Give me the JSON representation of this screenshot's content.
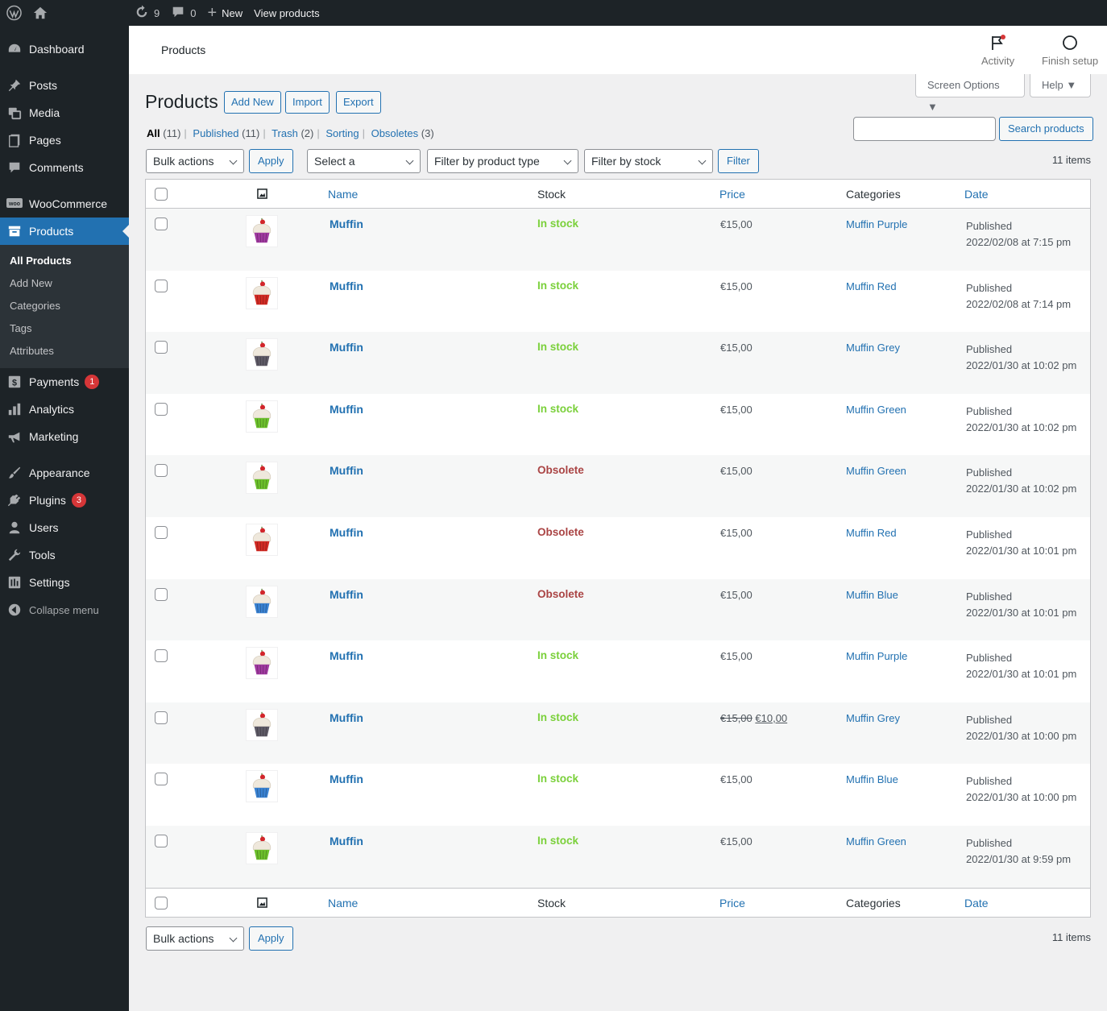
{
  "adminbar": {
    "updates_count": "9",
    "comments_count": "0",
    "new_label": "New",
    "view_label": "View products"
  },
  "sidebar": {
    "items": [
      {
        "label": "Dashboard",
        "icon": "dashboard-icon"
      },
      {
        "label": "Posts",
        "icon": "pin-icon"
      },
      {
        "label": "Media",
        "icon": "media-icon"
      },
      {
        "label": "Pages",
        "icon": "pages-icon"
      },
      {
        "label": "Comments",
        "icon": "comments-icon"
      },
      {
        "label": "WooCommerce",
        "icon": "woo-icon"
      },
      {
        "label": "Products",
        "icon": "archive-icon"
      },
      {
        "label": "Payments",
        "icon": "payments-icon",
        "badge": "1"
      },
      {
        "label": "Analytics",
        "icon": "chart-bar-icon"
      },
      {
        "label": "Marketing",
        "icon": "megaphone-icon"
      },
      {
        "label": "Appearance",
        "icon": "brush-icon"
      },
      {
        "label": "Plugins",
        "icon": "plugin-icon",
        "badge": "3"
      },
      {
        "label": "Users",
        "icon": "users-icon"
      },
      {
        "label": "Tools",
        "icon": "wrench-icon"
      },
      {
        "label": "Settings",
        "icon": "settings-icon"
      }
    ],
    "submenu": [
      "All Products",
      "Add New",
      "Categories",
      "Tags",
      "Attributes"
    ],
    "collapse_label": "Collapse menu"
  },
  "header": {
    "title": "Products",
    "activity_label": "Activity",
    "finish_setup_label": "Finish setup",
    "screen_options_label": "Screen Options ▼",
    "help_label": "Help ▼"
  },
  "page": {
    "title": "Products",
    "add_new": "Add New",
    "import": "Import",
    "export": "Export",
    "views": [
      {
        "label": "All",
        "count": "(11)"
      },
      {
        "label": "Published",
        "count": "(11)"
      },
      {
        "label": "Trash",
        "count": "(2)"
      },
      {
        "label": "Sorting",
        "count": ""
      },
      {
        "label": "Obsoletes",
        "count": "(3)"
      }
    ],
    "search_button": "Search products",
    "search_placeholder": "",
    "bulk_actions": "Bulk actions",
    "apply": "Apply",
    "category_filter": "Select a category",
    "type_filter": "Filter by product type",
    "stock_filter": "Filter by stock status",
    "filter_button": "Filter",
    "items_count": "11 items"
  },
  "table": {
    "columns": {
      "name": "Name",
      "stock": "Stock",
      "price": "Price",
      "categories": "Categories",
      "date": "Date"
    },
    "rows": [
      {
        "name": "Muffin",
        "stock": "In stock",
        "price": "€15,00",
        "category": "Muffin Purple",
        "status": "Published",
        "date": "2022/02/08 at 7:15 pm",
        "color": "#a03aa0"
      },
      {
        "name": "Muffin",
        "stock": "In stock",
        "price": "€15,00",
        "category": "Muffin Red",
        "status": "Published",
        "date": "2022/02/08 at 7:14 pm",
        "color": "#d22b24"
      },
      {
        "name": "Muffin",
        "stock": "In stock",
        "price": "€15,00",
        "category": "Muffin Grey",
        "status": "Published",
        "date": "2022/01/30 at 10:02 pm",
        "color": "#5e5a66"
      },
      {
        "name": "Muffin",
        "stock": "In stock",
        "price": "€15,00",
        "category": "Muffin Green",
        "status": "Published",
        "date": "2022/01/30 at 10:02 pm",
        "color": "#6cc02c"
      },
      {
        "name": "Muffin",
        "stock": "Obsolete",
        "price": "€15,00",
        "category": "Muffin Green",
        "status": "Published",
        "date": "2022/01/30 at 10:02 pm",
        "color": "#6cc02c"
      },
      {
        "name": "Muffin",
        "stock": "Obsolete",
        "price": "€15,00",
        "category": "Muffin Red",
        "status": "Published",
        "date": "2022/01/30 at 10:01 pm",
        "color": "#d22b24"
      },
      {
        "name": "Muffin",
        "stock": "Obsolete",
        "price": "€15,00",
        "category": "Muffin Blue",
        "status": "Published",
        "date": "2022/01/30 at 10:01 pm",
        "color": "#3a82d2"
      },
      {
        "name": "Muffin",
        "stock": "In stock",
        "price": "€15,00",
        "category": "Muffin Purple",
        "status": "Published",
        "date": "2022/01/30 at 10:01 pm",
        "color": "#a03aa0"
      },
      {
        "name": "Muffin",
        "stock": "In stock",
        "price_regular": "€15,00",
        "price_sale": "€10,00",
        "category": "Muffin Grey",
        "status": "Published",
        "date": "2022/01/30 at 10:00 pm",
        "color": "#5e5a66"
      },
      {
        "name": "Muffin",
        "stock": "In stock",
        "price": "€15,00",
        "category": "Muffin Blue",
        "status": "Published",
        "date": "2022/01/30 at 10:00 pm",
        "color": "#3a82d2"
      },
      {
        "name": "Muffin",
        "stock": "In stock",
        "price": "€15,00",
        "category": "Muffin Green",
        "status": "Published",
        "date": "2022/01/30 at 9:59 pm",
        "color": "#6cc02c"
      }
    ]
  },
  "colors": {
    "in_stock": "#7ad03a",
    "obsolete": "#aa4444",
    "accent": "#2271b1",
    "sidebar_bg": "#1d2327"
  }
}
